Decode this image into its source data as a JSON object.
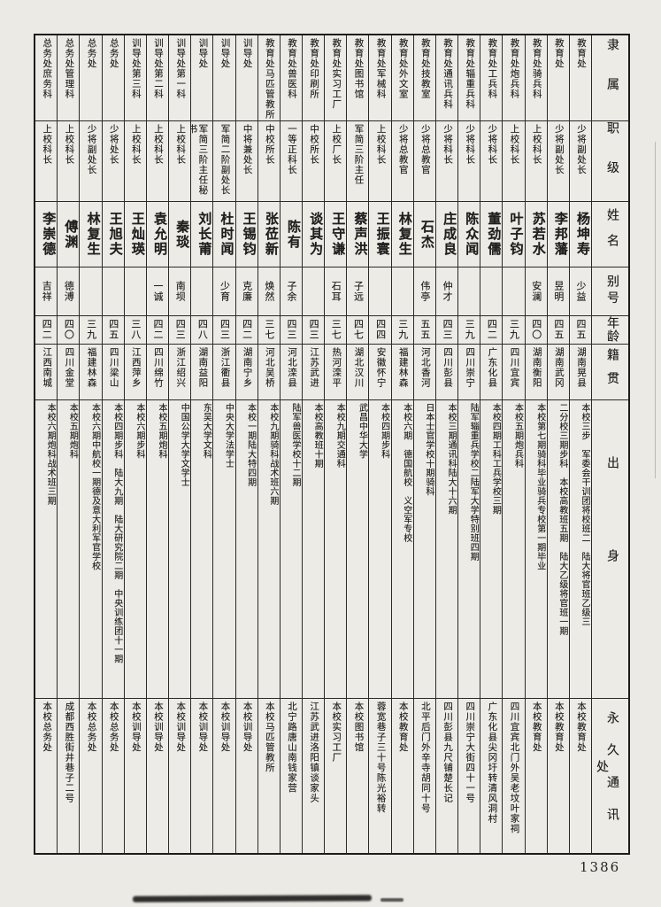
{
  "page_number": "1386",
  "header_labels": {
    "affiliation": "隶属",
    "rank": "职级",
    "name": "姓名",
    "alias": "别号",
    "age": "年龄",
    "native_place": "籍贯",
    "background": "出身",
    "address": "永久通讯处"
  },
  "people": [
    {
      "affiliation": "教育处",
      "rank": "少将副处长",
      "name": "杨坤寿",
      "alias": "少益",
      "age": "四五",
      "native_place": "湖南晃县",
      "background": "本校三步　军委会干训团将校班二　陆大将官班乙级三",
      "address": "本校教育处"
    },
    {
      "affiliation": "教育处",
      "rank": "少将副处长",
      "name": "李邦藩",
      "alias": "昱明",
      "age": "四五",
      "native_place": "湖南武冈",
      "background": "二分校三期步科　本校高教班五期　陆大乙级将官班一期",
      "address": "本校教育处"
    },
    {
      "affiliation": "教育处骑兵科",
      "rank": "上校科长",
      "name": "苏若水",
      "alias": "安澜",
      "age": "四〇",
      "native_place": "湖南衡阳",
      "background": "本校第七期骑科毕业骑兵专校第一期毕业",
      "address": "本校教育处"
    },
    {
      "affiliation": "教育处炮兵科",
      "rank": "上校科长",
      "name": "叶子钧",
      "alias": "",
      "age": "三九",
      "native_place": "四川宜宾",
      "background": "本校五期炮兵科",
      "address": "四川宜宾北门外吴老坟叶家祠"
    },
    {
      "affiliation": "教育处工兵科",
      "rank": "少将科长",
      "name": "董劲儒",
      "alias": "",
      "age": "四二",
      "native_place": "广东化县",
      "background": "本校四期工科工兵学校三期",
      "address": "广东化县尖冈圩转清风洞村"
    },
    {
      "affiliation": "教育处辎重兵科",
      "rank": "少将科长",
      "name": "陈众闻",
      "alias": "",
      "age": "三九",
      "native_place": "四川崇宁",
      "background": "陆军辎重兵学校二陆军大学特别班四期",
      "address": "四川崇宁大街四十一号"
    },
    {
      "affiliation": "教育处通讯兵科",
      "rank": "少将科长",
      "name": "庄成良",
      "alias": "仲才",
      "age": "四三",
      "native_place": "四川彭县",
      "background": "本校三期通讯科陆大十六期",
      "address": "四川彭县九尺铺楚长记"
    },
    {
      "affiliation": "教育处技教室",
      "rank": "少将总教官",
      "name": "石杰",
      "alias": "伟亭",
      "age": "五五",
      "native_place": "河北香河",
      "background": "日本士官学校十期骑科",
      "address": "北平后门外辛寺胡同十号"
    },
    {
      "affiliation": "教育处外文室",
      "rank": "少将总教官",
      "name": "林复生",
      "alias": "",
      "age": "三九",
      "native_place": "福建林森",
      "background": "本校六期　德国航校　义空军专校",
      "address": "本校教育处"
    },
    {
      "affiliation": "教育处军械科",
      "rank": "上校科长",
      "name": "王振寰",
      "alias": "",
      "age": "四四",
      "native_place": "安徽怀宁",
      "background": "本校四期步科",
      "address": "蓉宽巷子三十号陈光裕转"
    },
    {
      "affiliation": "教育处图书馆",
      "rank": "军简三阶主任",
      "name": "蔡声洪",
      "alias": "子远",
      "age": "四七",
      "native_place": "湖北汉川",
      "background": "武昌中华大学",
      "address": "本校图书馆"
    },
    {
      "affiliation": "教育处实习工厂",
      "rank": "上校厂长",
      "name": "王守谦",
      "alias": "石耳",
      "age": "三七",
      "native_place": "热河滦平",
      "background": "本校九期交通科",
      "address": "本校实习工厂"
    },
    {
      "affiliation": "教育处印刷所",
      "rank": "中校所长",
      "name": "谈其为",
      "alias": "",
      "age": "四三",
      "native_place": "江苏武进",
      "background": "本校高教班十期",
      "address": "江苏武进洛阳镇谈家头"
    },
    {
      "affiliation": "教育处兽医科",
      "rank": "一等正科长",
      "name": "陈有",
      "alias": "子余",
      "age": "四三",
      "native_place": "河北滦县",
      "background": "陆军兽医学校十二期",
      "address": "北宁路唐山南钱家营"
    },
    {
      "affiliation": "教育处马匹管教所",
      "rank": "中校所长",
      "name": "张莅新",
      "alias": "焕然",
      "age": "三七",
      "native_place": "河北吴桥",
      "background": "本校九期骑科战术班六期",
      "address": "本校马匹管教所"
    },
    {
      "affiliation": "训导处",
      "rank": "中将兼处长",
      "name": "王锡钧",
      "alias": "克廉",
      "age": "四二",
      "native_place": "湖南宁乡",
      "background": "本校一期陆大特四期",
      "address": "本校训导处"
    },
    {
      "affiliation": "训导处",
      "rank": "军简二阶副处长",
      "name": "杜时闻",
      "alias": "少育",
      "age": "四三",
      "native_place": "浙江衢县",
      "background": "中央大学法学士",
      "address": "本校训导处"
    },
    {
      "affiliation": "训导处",
      "rank": "军简三阶主任秘书",
      "name": "刘长莆",
      "alias": "",
      "age": "四八",
      "native_place": "湖南益阳",
      "background": "东吴大学文科",
      "address": "本校训导处"
    },
    {
      "affiliation": "训导处第一科",
      "rank": "上校科长",
      "name": "秦琰",
      "alias": "南坝",
      "age": "四三",
      "native_place": "浙江绍兴",
      "background": "中国公学大学文学士",
      "address": "本校训导处"
    },
    {
      "affiliation": "训导处第二科",
      "rank": "上校科长",
      "name": "袁允明",
      "alias": "一诚",
      "age": "四二",
      "native_place": "四川绵竹",
      "background": "本校五期炮科",
      "address": "本校训导处"
    },
    {
      "affiliation": "训导处第三科",
      "rank": "上校科长",
      "name": "王灿瑛",
      "alias": "",
      "age": "三八",
      "native_place": "江西萍乡",
      "background": "本校六期步科",
      "address": "本校训导处"
    },
    {
      "affiliation": "总务处",
      "rank": "少将处长",
      "name": "王旭夫",
      "alias": "",
      "age": "四五",
      "native_place": "四川梁山",
      "background": "本校四期步科　陆大九期　陆大研究院二期　中央训练团十一期",
      "address": "本校总务处"
    },
    {
      "affiliation": "总务处",
      "rank": "少将副处长",
      "name": "林复生",
      "alias": "",
      "age": "三九",
      "native_place": "福建林森",
      "background": "本校六期中航校一期德及意大利军官学校",
      "address": "本校总务处"
    },
    {
      "affiliation": "总务处管理科",
      "rank": "上校科长",
      "name": "傅渊",
      "alias": "德溥",
      "age": "四〇",
      "native_place": "四川金堂",
      "background": "本校五期炮科",
      "address": "成都西胜街井巷子二号"
    },
    {
      "affiliation": "总务处庶务科",
      "rank": "上校科长",
      "name": "李崇德",
      "alias": "吉祥",
      "age": "四二",
      "native_place": "江西南城",
      "background": "本校六期炮科战术班三期",
      "address": "本校总务处"
    }
  ]
}
